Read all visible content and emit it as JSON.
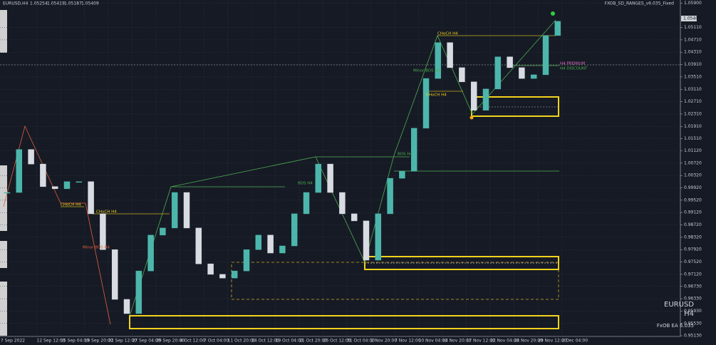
{
  "header": {
    "symbol": "EURUSD,H4",
    "quote": [
      1.05254,
      1.05419,
      1.05187,
      1.05409
    ],
    "indicator": "FXOB_SD_RANGES_v6.035_Fixed"
  },
  "chart_data": {
    "type": "candlestick",
    "ylim": [
      0.9511,
      1.06
    ],
    "yticks": [
      {
        "value": 1.059,
        "label": "1.05900"
      },
      {
        "value": 1.0511,
        "label": "1.05110"
      },
      {
        "value": 1.0471,
        "label": "1.04710"
      },
      {
        "value": 1.0431,
        "label": "1.04310"
      },
      {
        "value": 1.0391,
        "label": "1.03910"
      },
      {
        "value": 1.0351,
        "label": "1.03510"
      },
      {
        "value": 1.0311,
        "label": "1.03110"
      },
      {
        "value": 1.0271,
        "label": "1.02710"
      },
      {
        "value": 1.0231,
        "label": "1.02310"
      },
      {
        "value": 1.0191,
        "label": "1.01910"
      },
      {
        "value": 1.0151,
        "label": "1.01510"
      },
      {
        "value": 1.0112,
        "label": "1.01120"
      },
      {
        "value": 1.0072,
        "label": "1.00720"
      },
      {
        "value": 1.0032,
        "label": "1.00320"
      },
      {
        "value": 0.9992,
        "label": "0.99920"
      },
      {
        "value": 0.9952,
        "label": "0.99520"
      },
      {
        "value": 0.9912,
        "label": "0.99120"
      },
      {
        "value": 0.9872,
        "label": "0.98720"
      },
      {
        "value": 0.9832,
        "label": "0.98320"
      },
      {
        "value": 0.9792,
        "label": "0.97920"
      },
      {
        "value": 0.9752,
        "label": "0.97520"
      },
      {
        "value": 0.9712,
        "label": "0.97120"
      },
      {
        "value": 0.9673,
        "label": "0.96730"
      },
      {
        "value": 0.9633,
        "label": "0.96330"
      },
      {
        "value": 0.9593,
        "label": "0.95930"
      },
      {
        "value": 0.9553,
        "label": "0.95530"
      },
      {
        "value": 0.9513,
        "label": "0.95130"
      }
    ],
    "time_labels": [
      "7 Sep 2022",
      "12 Sep 12:00",
      "15 Sep 04:00",
      "19 Sep 20:00",
      "22 Sep 12:00",
      "27 Sep 04:00",
      "29 Sep 20:00",
      "4 Oct 12:00",
      "7 Oct 04:00",
      "11 Oct 20:00",
      "14 Oct 12:00",
      "19 Oct 04:00",
      "21 Oct 20:00",
      "26 Oct 12:00",
      "31 Oct 04:00",
      "2 Nov 20:00",
      "7 Nov 12:00",
      "10 Nov 04:00",
      "14 Nov 20:00",
      "17 Nov 12:00",
      "22 Nov 04:00",
      "24 Nov 20:00",
      "29 Nov 12:00",
      "2 Dec 04:00"
    ],
    "closes": [
      0.9977,
      1.0116,
      1.0069,
      0.9996,
      0.9989,
      1.0012,
      1.0012,
      0.9908,
      0.9792,
      0.9631,
      0.9585,
      0.9723,
      0.9839,
      0.9862,
      0.9977,
      0.9862,
      0.9746,
      0.9712,
      0.97,
      0.9723,
      0.9792,
      0.9839,
      0.9781,
      0.9804,
      0.9908,
      0.9977,
      1.0069,
      0.9977,
      0.9908,
      0.9885,
      0.9758,
      0.9908,
      1.0023,
      1.0046,
      1.0185,
      1.0346,
      1.0462,
      1.0381,
      1.0335,
      1.0243,
      1.0312,
      1.0416,
      1.0381,
      1.0346,
      1.0358,
      1.0485,
      1.0531
    ],
    "up_color": "#4db6ac",
    "down_color": "#d8dbe2",
    "grid": true
  },
  "annotations": {
    "choch_1": "CHoCH H4",
    "choch_2": "CHoCH H4",
    "choch_3": "CHoCH H4",
    "choch_4": "CHoCH H4",
    "minor_bos_red": "Minor BOS H4",
    "minor_bos_green": "Minor BOS H4",
    "bos_1": "BOS H4",
    "bos_2": "BOS H4",
    "premium": "H4 PREMIUM",
    "discount": "H4 DISCOUNT"
  },
  "watermark": {
    "symbol": "EURUSD",
    "timeframe": "H4",
    "ea": "FxOB EA 6.035"
  }
}
